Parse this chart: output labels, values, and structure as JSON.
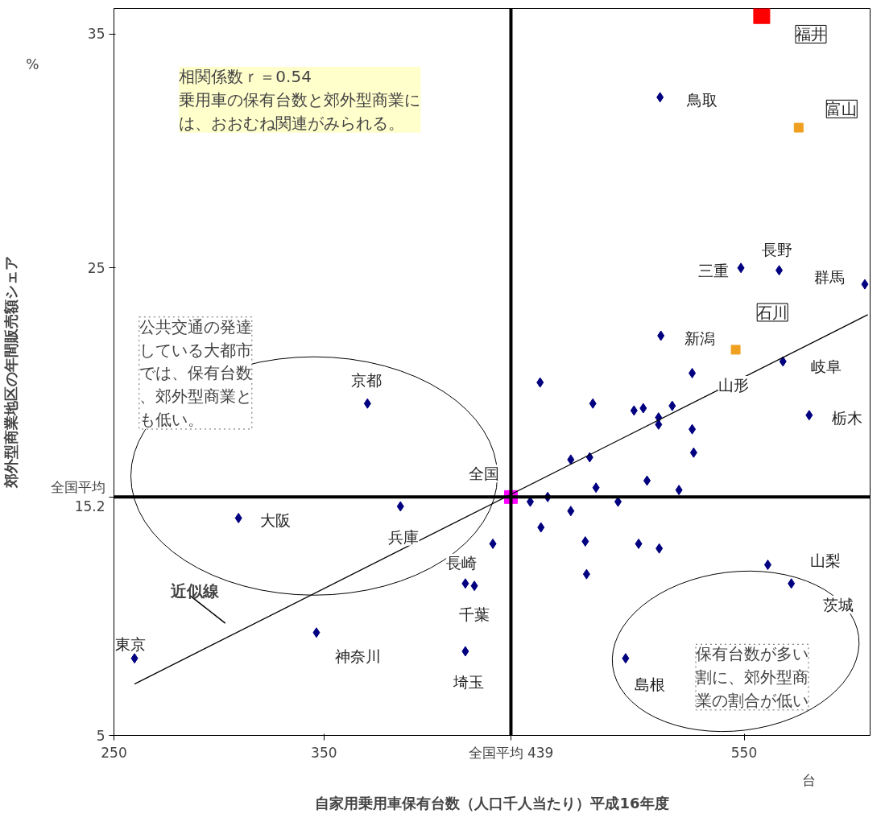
{
  "chart_data": {
    "type": "scatter",
    "xlabel": "自家用乗用車保有台数（人口千人当たり）平成16年度",
    "ylabel": "郊外型商業地区の年間販売額シェア",
    "xlim": [
      250,
      610
    ],
    "ylim": [
      5,
      36.1
    ],
    "xticks": [
      250,
      350,
      550
    ],
    "yticks": [
      5,
      25,
      35
    ],
    "grid": false,
    "series": [
      {
        "color": "#000080",
        "marker": "diamond",
        "x": [
          510,
          548.5,
          566.7,
          607.5,
          510.4,
          568.5,
          525.3,
          581,
          370.7,
          309.3,
          386.4,
          430.4,
          417.3,
          421.6,
          346.4,
          259.8,
          417.3,
          493.6,
          561.3,
          572.5,
          452.9,
          478,
          497.6,
          502,
          509.3,
          509.3,
          515.8,
          525.3,
          526,
          467.5,
          476.5,
          479.5,
          503.8,
          519,
          448.2,
          456.5,
          490,
          453.3,
          467.5,
          474.4,
          499.8,
          509.6,
          475
        ],
        "values": [
          32.3,
          25,
          24.9,
          24.3,
          22.1,
          21.0,
          20.5,
          18.7,
          19.2,
          14.3,
          14.8,
          13.2,
          11.5,
          11.4,
          9.4,
          8.3,
          8.6,
          8.3,
          12.3,
          11.5,
          20.1,
          19.2,
          18.9,
          19.0,
          18.6,
          18.3,
          19.1,
          18.1,
          17.1,
          16.8,
          16.9,
          15.6,
          15.9,
          15.5,
          15.0,
          15.2,
          15.0,
          13.9,
          14.6,
          13.3,
          13.2,
          13.0,
          11.9
        ]
      },
      {
        "color": "#ff0000",
        "marker": "square",
        "x": [
          558.4
        ],
        "values": [
          35.8
        ]
      },
      {
        "color": "#f0a020",
        "marker": "square",
        "x": [
          576,
          546
        ],
        "values": [
          31.0,
          21.5
        ]
      },
      {
        "color": "#ff00ff",
        "marker": "square",
        "x": [
          439
        ],
        "values": [
          15.2
        ]
      },
      {
        "type": "line",
        "color": "#000000",
        "x": [
          259.8,
          608.9
        ],
        "values": [
          7.2,
          23.0
        ]
      }
    ],
    "ref_lines": [
      {
        "axis": "y",
        "value": 15.2,
        "label": "全国平均\n15.2",
        "color": "#000000"
      },
      {
        "axis": "x",
        "value": 439,
        "label": "全国平均 439",
        "color": "#000000"
      }
    ],
    "annotations": [
      "福井",
      "鳥取",
      "富山",
      "三重",
      "長野",
      "群馬",
      "新潟",
      "石川",
      "岐阜",
      "山形",
      "栃木",
      "京都",
      "大阪",
      "兵庫",
      "長崎",
      "千葉",
      "神奈川",
      "東京",
      "埼玉",
      "島根",
      "山梨",
      "茨城",
      "全国",
      "相関係数ｒ＝0.54\n乗用車の保有台数と郊外型商業には、おおむね関連がみられる。",
      "公共交通の発達している大都市では、保有台数、郊外型商業とも低い。",
      "保有台数が多い割に、郊外型商業の割合が低い",
      "近似線",
      "%",
      "台"
    ]
  }
}
